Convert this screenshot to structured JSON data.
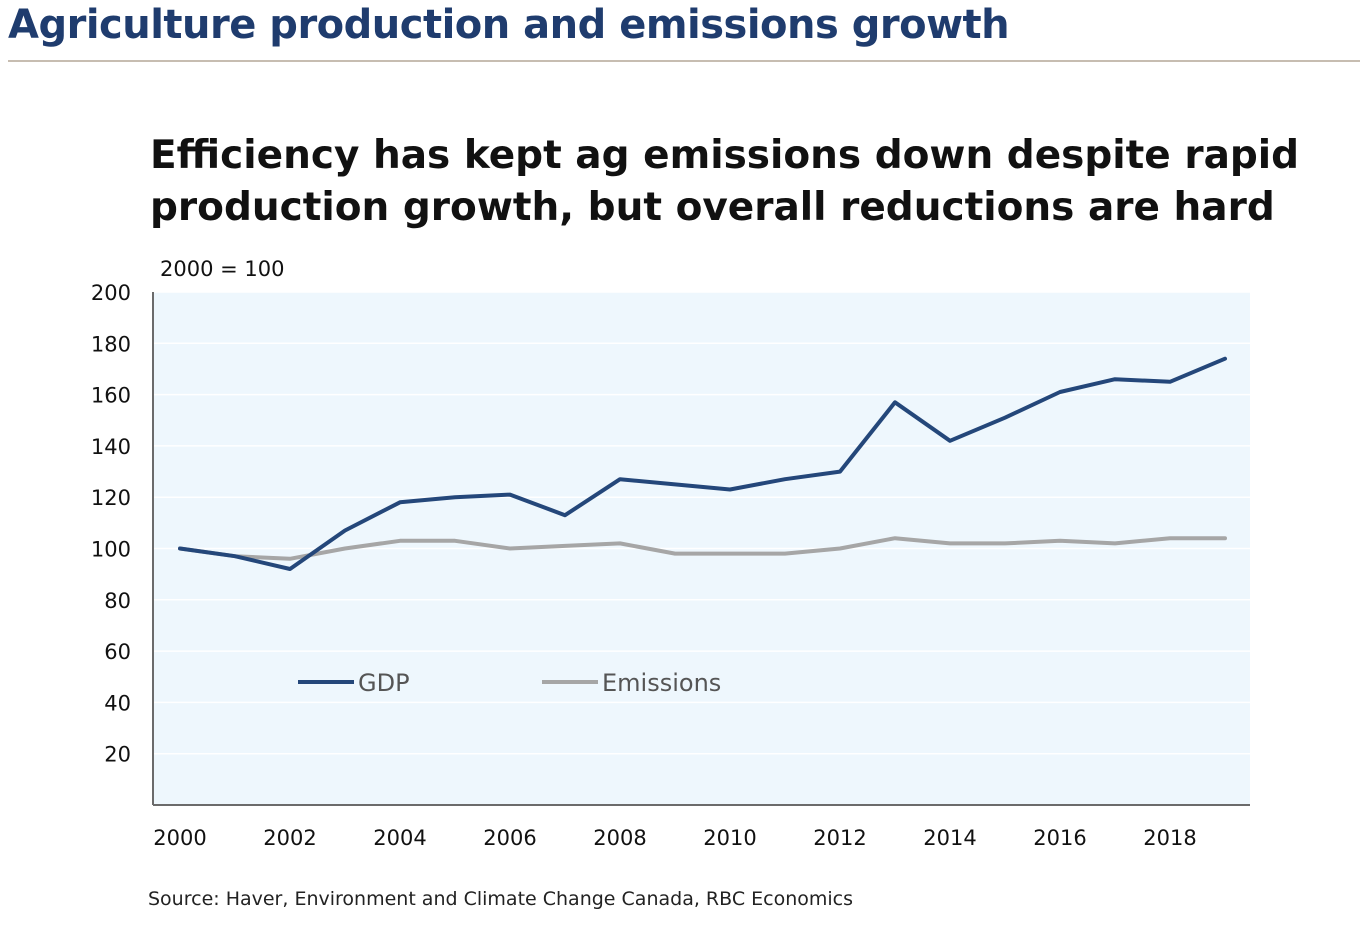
{
  "header": {
    "title": "Agriculture production and emissions growth"
  },
  "source": "Source: Haver, Environment and Climate Change Canada, RBC Economics",
  "chart_data": {
    "type": "line",
    "title": "Efficiency has kept ag emissions down despite rapid production growth, but overall reductions are hard",
    "ylabel": "2000 = 100",
    "xlabel": "",
    "x": [
      2000,
      2001,
      2002,
      2003,
      2004,
      2005,
      2006,
      2007,
      2008,
      2009,
      2010,
      2011,
      2012,
      2013,
      2014,
      2015,
      2016,
      2017,
      2018,
      2019
    ],
    "x_ticks": [
      "2000",
      "2002",
      "2004",
      "2006",
      "2008",
      "2010",
      "2012",
      "2014",
      "2016",
      "2018"
    ],
    "y_ticks": [
      "20",
      "40",
      "60",
      "80",
      "100",
      "120",
      "140",
      "160",
      "180",
      "200"
    ],
    "xlim": [
      2000,
      2019
    ],
    "ylim": [
      0,
      200
    ],
    "grid": true,
    "legend_position": "lower-left inside",
    "plot_background": "#eef7fd",
    "series": [
      {
        "name": "GDP",
        "color": "#24477a",
        "values": [
          100,
          97,
          92,
          107,
          118,
          120,
          121,
          113,
          127,
          125,
          123,
          127,
          130,
          157,
          142,
          151,
          161,
          166,
          165,
          174
        ]
      },
      {
        "name": "Emissions",
        "color": "#a6a6a6",
        "values": [
          100,
          97,
          96,
          100,
          103,
          103,
          100,
          101,
          102,
          98,
          98,
          98,
          100,
          104,
          102,
          102,
          103,
          102,
          104,
          104
        ]
      }
    ]
  }
}
